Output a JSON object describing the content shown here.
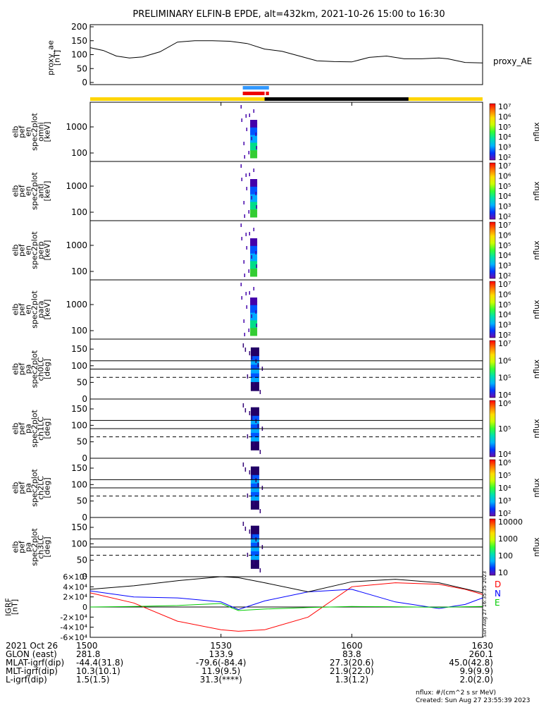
{
  "title": "PRELIMINARY ELFIN-B EPDE, alt=432km, 2021-10-26 15:00 to 16:30",
  "chart_data": [
    {
      "type": "line",
      "name": "proxy_ae",
      "ylabel": [
        "proxy_ae",
        "[nT]"
      ],
      "legend": "proxy_AE",
      "ylim": [
        0,
        200
      ],
      "yticks": [
        "0",
        "50",
        "100",
        "150",
        "200"
      ],
      "x": [
        0,
        3,
        6,
        9,
        12,
        16,
        20,
        24,
        28,
        32,
        36,
        40,
        44,
        48,
        52,
        56,
        60,
        64,
        68,
        72,
        76,
        80,
        82,
        86,
        90
      ],
      "y": [
        125,
        115,
        95,
        88,
        92,
        110,
        145,
        150,
        150,
        148,
        140,
        120,
        112,
        95,
        78,
        75,
        74,
        90,
        95,
        85,
        85,
        88,
        85,
        72,
        70
      ]
    },
    {
      "type": "heatmap",
      "name": "omni",
      "ylabel": [
        "elb",
        "pef",
        "en",
        "spec2plot",
        "omni",
        "[keV]"
      ],
      "yticks": [
        "100",
        "1000"
      ],
      "cbar_label": "nflux",
      "cbar_ticks": [
        "10²",
        "10³",
        "10⁴",
        "10⁵",
        "10⁶",
        "10⁷"
      ]
    },
    {
      "type": "heatmap",
      "name": "anti",
      "ylabel": [
        "elb",
        "pef",
        "en",
        "spec2plot",
        "anti",
        "[keV]"
      ],
      "yticks": [
        "100",
        "1000"
      ],
      "cbar_label": "nflux",
      "cbar_ticks": [
        "10²",
        "10³",
        "10⁴",
        "10⁵",
        "10⁶",
        "10⁷"
      ]
    },
    {
      "type": "heatmap",
      "name": "perp",
      "ylabel": [
        "elb",
        "pef",
        "en",
        "spec2plot",
        "perp",
        "[keV]"
      ],
      "yticks": [
        "100",
        "1000"
      ],
      "cbar_label": "nflux",
      "cbar_ticks": [
        "10²",
        "10³",
        "10⁴",
        "10⁵",
        "10⁶",
        "10⁷"
      ]
    },
    {
      "type": "heatmap",
      "name": "para",
      "ylabel": [
        "elb",
        "pef",
        "en",
        "spec2plot",
        "para",
        "[keV]"
      ],
      "yticks": [
        "100",
        "1000"
      ],
      "cbar_label": "nflux",
      "cbar_ticks": [
        "10²",
        "10³",
        "10⁴",
        "10⁵",
        "10⁶",
        "10⁷"
      ]
    },
    {
      "type": "heatmap",
      "name": "ch0LC",
      "ylabel": [
        "elb",
        "pef",
        "pa",
        "spec2plot",
        "ch0LC",
        "[deg]"
      ],
      "yticks": [
        "0",
        "50",
        "100",
        "150"
      ],
      "ylim": [
        0,
        180
      ],
      "cbar_label": "nflux",
      "cbar_ticks": [
        "10⁴",
        "10⁵",
        "10⁶",
        "10⁷"
      ]
    },
    {
      "type": "heatmap",
      "name": "ch1LC",
      "ylabel": [
        "elb",
        "pef",
        "pa",
        "spec2plot",
        "ch1LC",
        "[deg]"
      ],
      "yticks": [
        "0",
        "50",
        "100",
        "150"
      ],
      "ylim": [
        0,
        180
      ],
      "cbar_label": "nflux",
      "cbar_ticks": [
        "10⁴",
        "10⁵",
        "10⁶"
      ]
    },
    {
      "type": "heatmap",
      "name": "ch2LC",
      "ylabel": [
        "elb",
        "pef",
        "pa",
        "spec2plot",
        "ch2LC",
        "[deg]"
      ],
      "yticks": [
        "0",
        "50",
        "100",
        "150"
      ],
      "ylim": [
        0,
        180
      ],
      "cbar_label": "nflux",
      "cbar_ticks": [
        "10²",
        "10³",
        "10⁴",
        "10⁵",
        "10⁶"
      ]
    },
    {
      "type": "heatmap",
      "name": "ch3LC",
      "ylabel": [
        "elb",
        "pef",
        "pa",
        "spec2plot",
        "ch3LC",
        "[deg]"
      ],
      "yticks": [
        "0",
        "50",
        "100",
        "150"
      ],
      "ylim": [
        0,
        180
      ],
      "cbar_label": "nflux",
      "cbar_ticks": [
        "10",
        "100",
        "1000",
        "10000"
      ]
    },
    {
      "type": "line",
      "name": "IGRF",
      "ylabel": [
        "IGRF",
        "[nT]"
      ],
      "yticks": [
        "-6×10⁴",
        "-4×10⁴",
        "-2×10⁴",
        "0",
        "2×10⁴",
        "4×10⁴",
        "6×10⁴"
      ],
      "ylim": [
        -60000,
        60000
      ],
      "x": [
        0,
        10,
        20,
        30,
        34,
        40,
        50,
        60,
        70,
        80,
        86,
        90
      ],
      "series": [
        {
          "name": "D",
          "color": "#ff0000",
          "values": [
            28000,
            8000,
            -28000,
            -45000,
            -48000,
            -45000,
            -20000,
            40000,
            48000,
            45000,
            35000,
            25000
          ]
        },
        {
          "name": "N",
          "color": "#0000ff",
          "values": [
            32000,
            20000,
            18000,
            10000,
            -5000,
            12000,
            30000,
            35000,
            10000,
            -3000,
            5000,
            18000
          ]
        },
        {
          "name": "E",
          "color": "#00cc00",
          "values": [
            0,
            1000,
            3000,
            7000,
            -7000,
            -4000,
            -1000,
            1000,
            500,
            -500,
            500,
            1000
          ]
        },
        {
          "name": "",
          "color": "#000000",
          "values": [
            35000,
            42000,
            52000,
            60000,
            58000,
            48000,
            30000,
            50000,
            55000,
            48000,
            36000,
            28000
          ]
        }
      ]
    }
  ],
  "footer": {
    "row_labels": [
      "2021 Oct 26",
      "GLON (east)",
      "MLAT-igrf(dip)",
      "MLT-igrf(dip)",
      "L-igrf(dip)"
    ],
    "columns": [
      [
        "1500",
        "281.8",
        "-44.4(31.8)",
        "10.3(10.1)",
        "1.5(1.5)"
      ],
      [
        "1530",
        "133.9",
        "-79.6(-84.4)",
        "11.9(9.5)",
        "31.3(****)"
      ],
      [
        "1600",
        "83.8",
        "27.3(20.6)",
        "21.9(22.0)",
        "1.3(1.2)"
      ],
      [
        "1630",
        "260.1",
        "45.0(42.8)",
        "9.9(9.9)",
        "2.0(2.0)"
      ]
    ],
    "units_note": "nflux: #/(cm^2 s sr MeV)",
    "created": "Created: Sun Aug 27 23:55:39 2023",
    "side_stamp": "Sun Aug 27 16:35:35 2023"
  }
}
